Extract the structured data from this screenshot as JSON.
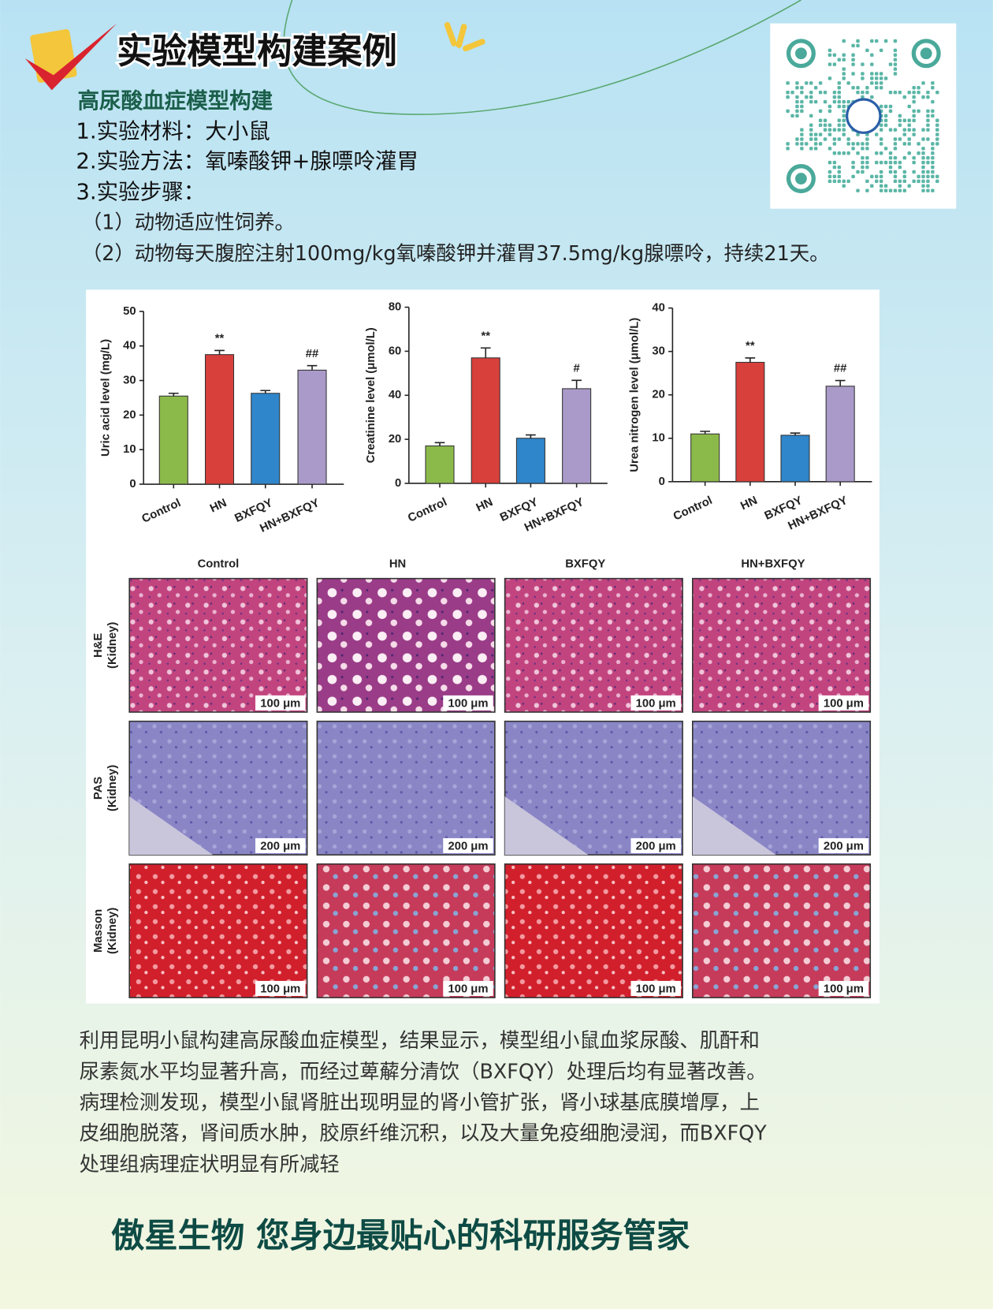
{
  "header": {
    "title": "实验模型构建案例",
    "subtitle": "高尿酸血症模型构建"
  },
  "items": [
    {
      "label": "1.实验材料：",
      "text": "大小鼠"
    },
    {
      "label": "2.实验方法：",
      "text": "氧嗪酸钾+腺嘌呤灌胃"
    },
    {
      "label": "3.实验步骤："
    }
  ],
  "steps": [
    "（1）动物适应性饲养。",
    "（2）动物每天腹腔注射100mg/kg氧嗪酸钾并灌胃37.5mg/kg腺嘌呤，持续21天。"
  ],
  "figure": {
    "charts": [
      {
        "type": "bar",
        "y_label": "Uric acid level (mg/L)",
        "categories": [
          "Control",
          "HN",
          "BXFQY",
          "HN+BXFQY"
        ],
        "values": [
          25.5,
          37.5,
          26.3,
          33
        ],
        "errors": [
          0.8,
          1.2,
          0.8,
          1.3
        ],
        "significance": [
          null,
          "**",
          null,
          "##"
        ],
        "colors": [
          "#8cba4a",
          "#d8403b",
          "#2f86cb",
          "#a99ac9"
        ],
        "ylim": [
          0,
          50
        ],
        "yticks": [
          0,
          10,
          20,
          30,
          40,
          50
        ]
      },
      {
        "type": "bar",
        "y_label": "Creatinine level (μmol/L)",
        "categories": [
          "Control",
          "HN",
          "BXFQY",
          "HN+BXFQY"
        ],
        "values": [
          17,
          57,
          20.5,
          43
        ],
        "errors": [
          1.5,
          4.5,
          1.5,
          3.8
        ],
        "significance": [
          null,
          "**",
          null,
          "#"
        ],
        "colors": [
          "#8cba4a",
          "#d8403b",
          "#2f86cb",
          "#a99ac9"
        ],
        "ylim": [
          0,
          80
        ],
        "yticks": [
          0,
          20,
          40,
          60,
          80
        ]
      },
      {
        "type": "bar",
        "y_label": "Urea nitrogen level (μmol/L)",
        "categories": [
          "Control",
          "HN",
          "BXFQY",
          "HN+BXFQY"
        ],
        "values": [
          11,
          27.5,
          10.7,
          22
        ],
        "errors": [
          0.6,
          1,
          0.5,
          1.3
        ],
        "significance": [
          null,
          "**",
          null,
          "##"
        ],
        "colors": [
          "#8cba4a",
          "#d8403b",
          "#2f86cb",
          "#a99ac9"
        ],
        "ylim": [
          0,
          40
        ],
        "yticks": [
          0,
          10,
          20,
          30,
          40
        ]
      }
    ],
    "histology": {
      "columns": [
        "Control",
        "HN",
        "BXFQY",
        "HN+BXFQY"
      ],
      "rows": [
        {
          "stain": "H&E",
          "tissue": "(Kidney)",
          "scale_bars": [
            "100 μm",
            "100 μm",
            "100 μm",
            "100 μm"
          ]
        },
        {
          "stain": "PAS",
          "tissue": "(Kidney)",
          "scale_bars": [
            "200 μm",
            "200 μm",
            "200 μm",
            "200 μm"
          ]
        },
        {
          "stain": "Masson",
          "tissue": "(Kidney)",
          "scale_bars": [
            "100 μm",
            "100 μm",
            "100 μm",
            "100 μm"
          ]
        }
      ]
    }
  },
  "paragraph": [
    "利用昆明小鼠构建高尿酸血症模型，结果显示，模型组小鼠血浆尿酸、肌酐和",
    "尿素氮水平均显著升高，而经过萆薢分清饮（BXFQY）处理后均有显著改善。",
    "病理检测发现，模型小鼠肾脏出现明显的肾小管扩张，肾小球基底膜增厚，上",
    "皮细胞脱落，肾间质水肿，胶原纤维沉积，以及大量免疫细胞浸润，而BXFQY",
    "处理组病理症状明显有所减轻"
  ],
  "footer": "傲星生物 您身边最贴心的科研服务管家"
}
